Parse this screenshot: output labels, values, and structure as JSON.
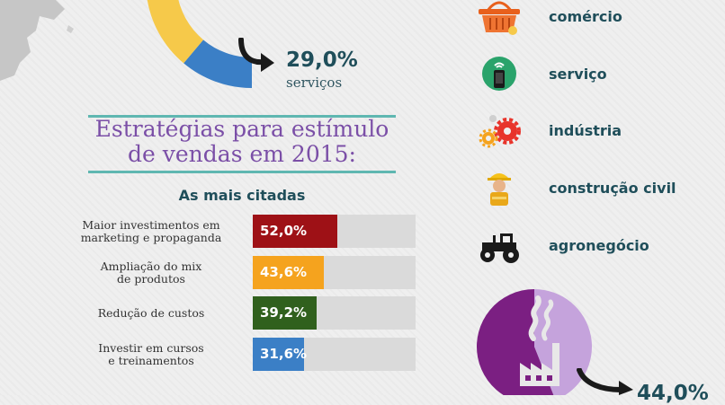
{
  "top_highlight": {
    "value": "29,0%",
    "label": "serviços"
  },
  "strategies": {
    "title_line1": "Estratégias para estímulo",
    "title_line2": "de vendas em 2015:",
    "subtitle": "As mais citadas"
  },
  "chart_data": [
    {
      "type": "bar",
      "orientation": "horizontal",
      "title": "Estratégias para estímulo de vendas em 2015:",
      "subtitle": "As mais citadas",
      "categories": [
        [
          "Maior investimentos em",
          "marketing e propaganda"
        ],
        [
          "Ampliação do mix",
          "de produtos"
        ],
        [
          "Redução de custos"
        ],
        [
          "Investir em cursos",
          "e treinamentos"
        ]
      ],
      "values": [
        52.0,
        43.6,
        39.2,
        31.6
      ],
      "value_labels": [
        "52,0%",
        "43,6%",
        "39,2%",
        "31,6%"
      ],
      "colors": [
        "#9e1116",
        "#f5a31e",
        "#30601d",
        "#3b7fc6"
      ],
      "track_color": "#dadada",
      "xlim": [
        0,
        100
      ]
    },
    {
      "type": "pie",
      "values": [
        44.0
      ],
      "value_labels": [
        "44,0%"
      ],
      "colors": [
        "#7b1f82",
        "#c5a3dc"
      ],
      "partially_visible": true
    }
  ],
  "sectors": [
    {
      "label": "comércio",
      "icon": "basket-icon"
    },
    {
      "label": "serviço",
      "icon": "smartphone-icon"
    },
    {
      "label": "indústria",
      "icon": "gears-icon"
    },
    {
      "label": "construção civil",
      "icon": "construction-worker-icon"
    },
    {
      "label": "agronegócio",
      "icon": "tractor-icon"
    }
  ],
  "colors": {
    "teal": "#1f4e5a",
    "purple": "#7b4fa7",
    "rule": "#5fb7b1",
    "donut": [
      "#3b7fc6",
      "#f6c94a",
      "#59a444"
    ]
  }
}
